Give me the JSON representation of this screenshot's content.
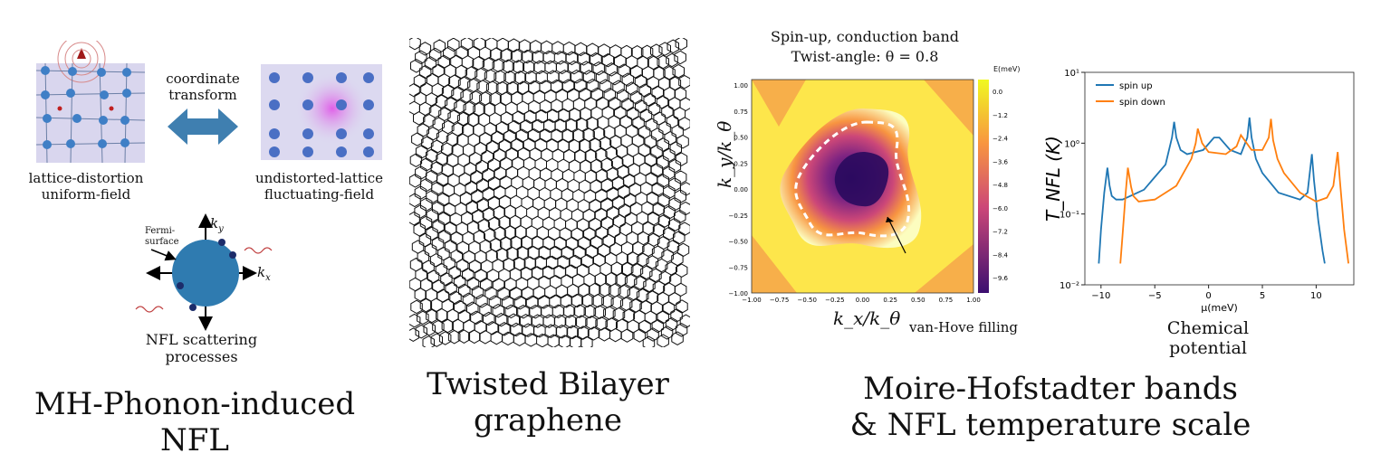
{
  "panel1": {
    "arrow_label_1": "coordinate",
    "arrow_label_2": "transform",
    "left_label_1": "lattice-distortion",
    "left_label_2": "uniform-field",
    "right_label_1": "undistorted-lattice",
    "right_label_2": "fluctuating-field",
    "fermi_label_1": "Fermi-",
    "fermi_label_2": "surface",
    "ky_label": "k",
    "ky_sub": "y",
    "kx_label": "k",
    "kx_sub": "x",
    "process_label_1": "NFL scattering",
    "process_label_2": "processes",
    "caption": "MH-Phonon-induced NFL"
  },
  "panel2": {
    "caption_1": "Twisted Bilayer",
    "caption_2": "graphene"
  },
  "panel3": {
    "title_1": "Spin-up, conduction band",
    "title_2": "Twist-angle: θ = 0.8",
    "colorbar_label": "E(meV)",
    "colorbar_ticks": [
      "0.0",
      "−1.2",
      "−2.4",
      "−3.6",
      "−4.8",
      "−6.0",
      "−7.2",
      "−8.4",
      "−9.6"
    ],
    "ytick_labels": [
      "1.00",
      "0.75",
      "0.50",
      "0.25",
      "0.00",
      "−0.25",
      "−0.50",
      "−0.75",
      "−1.00"
    ],
    "xtick_labels": [
      "−1.00",
      "−0.75",
      "−0.50",
      "−0.25",
      "0.00",
      "0.25",
      "0.50",
      "0.75",
      "1.00"
    ],
    "ylabel": "k_y/k_θ",
    "xlabel": "k_x/k_θ",
    "annotation": "van-Hove filling",
    "colors": {
      "low": "#3b0f70",
      "mid": "#cc4778",
      "high": "#fcfdbf"
    }
  },
  "panel4": {
    "xlabel": "μ(meV)",
    "ylabel": "T_NFL (K)",
    "caption_below": "Chemical potential",
    "legend": [
      "spin up",
      "spin down"
    ],
    "xticks": [
      "−10",
      "−5",
      "0",
      "5",
      "10"
    ],
    "yticks": [
      "10¹",
      "10⁰",
      "10⁻¹",
      "10⁻²"
    ]
  },
  "caption_right_1": "Moire-Hofstadter bands",
  "caption_right_2": "& NFL temperature scale",
  "chart_data": {
    "type": "line",
    "xlabel": "μ(meV)",
    "ylabel": "T_NFL (K)",
    "yscale": "log",
    "xlim": [
      -11.5,
      13.5
    ],
    "ylim": [
      0.01,
      10
    ],
    "legend_position": "top-left",
    "series": [
      {
        "name": "spin up",
        "color": "#1f77b4",
        "x": [
          -10.2,
          -10.0,
          -9.7,
          -9.4,
          -9.2,
          -9.0,
          -8.6,
          -8.0,
          -6.0,
          -4.0,
          -3.4,
          -3.2,
          -3.0,
          -2.6,
          -2.0,
          -0.5,
          0.5,
          1.0,
          2.0,
          3.0,
          3.6,
          3.8,
          4.0,
          4.4,
          5.0,
          6.5,
          8.5,
          9.2,
          9.6,
          9.8,
          10.2,
          10.6,
          10.8
        ],
        "y": [
          0.02,
          0.06,
          0.2,
          0.45,
          0.25,
          0.18,
          0.16,
          0.16,
          0.22,
          0.5,
          1.2,
          2.0,
          1.2,
          0.8,
          0.7,
          0.8,
          1.2,
          1.2,
          0.8,
          0.7,
          1.2,
          2.3,
          1.2,
          0.6,
          0.38,
          0.2,
          0.16,
          0.2,
          0.7,
          0.3,
          0.08,
          0.03,
          0.02
        ]
      },
      {
        "name": "spin down",
        "color": "#ff7f0e",
        "x": [
          -8.2,
          -8.0,
          -7.7,
          -7.5,
          -7.2,
          -7.0,
          -6.5,
          -5.0,
          -3.0,
          -1.6,
          -1.2,
          -1.0,
          -0.6,
          0.0,
          1.6,
          2.6,
          3.0,
          4.0,
          5.0,
          5.6,
          5.8,
          6.0,
          6.4,
          7.0,
          8.5,
          10.0,
          11.0,
          11.6,
          12.0,
          12.2,
          12.6,
          13.0
        ],
        "y": [
          0.02,
          0.05,
          0.2,
          0.45,
          0.24,
          0.18,
          0.15,
          0.16,
          0.25,
          0.6,
          1.0,
          1.6,
          1.0,
          0.75,
          0.7,
          0.9,
          1.3,
          0.8,
          0.8,
          1.2,
          2.2,
          1.1,
          0.6,
          0.38,
          0.2,
          0.15,
          0.17,
          0.25,
          0.75,
          0.3,
          0.06,
          0.02
        ]
      }
    ]
  }
}
